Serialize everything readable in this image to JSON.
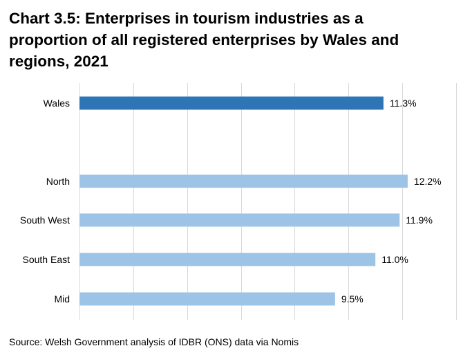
{
  "title_lines": [
    "Chart 3.5: Enterprises in tourism industries as a",
    "proportion of all registered enterprises by Wales and",
    "regions, 2021"
  ],
  "source": "Source: Welsh Government analysis of IDBR (ONS) data via Nomis",
  "colors": {
    "wales": "#2E75B6",
    "region": "#9DC3E6",
    "grid": "#D9D9D9"
  },
  "chart_data": {
    "type": "bar",
    "orientation": "horizontal",
    "title": "Chart 3.5: Enterprises in tourism industries as a proportion of all registered enterprises by Wales and regions, 2021",
    "xlim": [
      0,
      14
    ],
    "grid": true,
    "categories": [
      "Wales",
      "North",
      "South West",
      "South East",
      "Mid"
    ],
    "values": [
      11.3,
      12.2,
      11.9,
      11.0,
      9.5
    ],
    "labels": [
      "11.3%",
      "12.2%",
      "11.9%",
      "11.0%",
      "9.5%"
    ],
    "xlabel": "",
    "ylabel": ""
  }
}
